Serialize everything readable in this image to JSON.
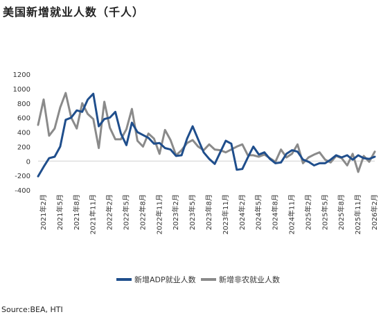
{
  "title": "美国新增就业人数（千人）",
  "source": "Source:BEA, HTI",
  "colors": {
    "adp": "#1f4e8c",
    "nfp": "#8a8a8a",
    "axis": "#d0d0d0"
  },
  "chart_data": {
    "type": "line",
    "title": "美国新增就业人数（千人）",
    "ylim": [
      -400,
      1200
    ],
    "yticks": [
      -400,
      -200,
      0,
      200,
      400,
      600,
      800,
      1000,
      1200
    ],
    "x_tick_labels": [
      "2021年2月",
      "2021年5月",
      "2021年8月",
      "2021年11月",
      "2022年2月",
      "2022年5月",
      "2022年8月",
      "2022年11月",
      "2023年2月",
      "2023年5月",
      "2023年8月",
      "2023年11月",
      "2024年2月",
      "2024年5月",
      "2024年8月",
      "2024年11月",
      "2025年2月",
      "2025年5月",
      "2025年8月",
      "2025年11月",
      "2026年2月"
    ],
    "x": [
      "2021-01",
      "2021-02",
      "2021-03",
      "2021-04",
      "2021-05",
      "2021-06",
      "2021-07",
      "2021-08",
      "2021-09",
      "2021-10",
      "2021-11",
      "2021-12",
      "2022-01",
      "2022-02",
      "2022-03",
      "2022-04",
      "2022-05",
      "2022-06",
      "2022-07",
      "2022-08",
      "2022-09",
      "2022-10",
      "2022-11",
      "2022-12",
      "2023-01",
      "2023-02",
      "2023-03",
      "2023-04",
      "2023-05",
      "2023-06",
      "2023-07",
      "2023-08",
      "2023-09",
      "2023-10",
      "2023-11",
      "2023-12",
      "2024-01",
      "2024-02",
      "2024-03",
      "2024-04",
      "2024-05",
      "2024-06",
      "2024-07",
      "2024-08",
      "2024-09",
      "2024-10",
      "2024-11",
      "2024-12",
      "2025-01",
      "2025-02",
      "2025-03",
      "2025-04",
      "2025-05",
      "2025-06",
      "2025-07",
      "2025-08",
      "2025-09",
      "2025-10",
      "2025-11",
      "2025-12",
      "2026-01",
      "2026-02"
    ],
    "series": [
      {
        "name": "新增ADP就业人数",
        "key": "adp",
        "values": [
          -210,
          -80,
          40,
          60,
          200,
          570,
          600,
          700,
          680,
          850,
          930,
          480,
          580,
          600,
          680,
          380,
          220,
          530,
          400,
          360,
          320,
          240,
          250,
          180,
          160,
          70,
          80,
          310,
          480,
          300,
          120,
          30,
          -40,
          120,
          280,
          240,
          -120,
          -110,
          50,
          200,
          90,
          120,
          30,
          -30,
          -20,
          100,
          150,
          130,
          20,
          -10,
          -60,
          -30,
          -30,
          20,
          80,
          50,
          80,
          20,
          80,
          40,
          30,
          60
        ]
      },
      {
        "name": "新增非农就业人数",
        "key": "nfp",
        "values": [
          500,
          850,
          350,
          450,
          740,
          940,
          600,
          450,
          800,
          650,
          580,
          180,
          820,
          460,
          300,
          300,
          440,
          720,
          280,
          200,
          380,
          310,
          100,
          430,
          290,
          80,
          150,
          250,
          290,
          200,
          150,
          230,
          160,
          150,
          120,
          160,
          200,
          230,
          80,
          80,
          60,
          90,
          40,
          -10,
          160,
          50,
          100,
          230,
          -30,
          50,
          90,
          120,
          20,
          -20,
          70,
          40,
          -60,
          100,
          -150,
          70,
          -10,
          130
        ]
      }
    ],
    "legend": {
      "placement": "bottom",
      "entries": [
        "新增ADP就业人数",
        "新增非农就业人数"
      ]
    },
    "grid": false
  }
}
